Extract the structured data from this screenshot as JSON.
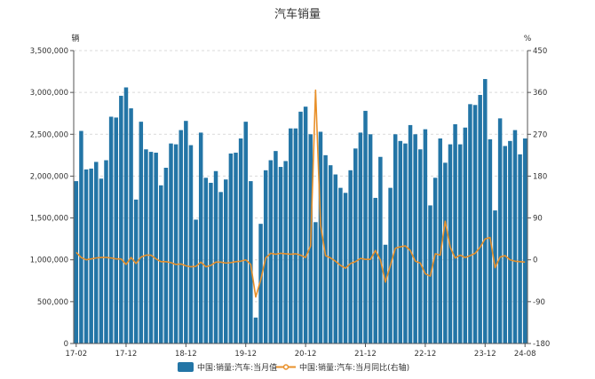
{
  "chart_data": {
    "type": "bar",
    "title": "汽车销量",
    "y_left_unit": "辆",
    "y_right_unit": "%",
    "x_tick_labels": [
      "17-02",
      "17-12",
      "18-12",
      "19-12",
      "20-12",
      "21-12",
      "22-12",
      "23-12",
      "24-08"
    ],
    "y_left_ticks": [
      "0",
      "500,000",
      "1,000,000",
      "1,500,000",
      "2,000,000",
      "2,500,000",
      "3,000,000",
      "3,500,000"
    ],
    "y_right_ticks": [
      "-180",
      "-90",
      "0",
      "90",
      "180",
      "270",
      "360",
      "450"
    ],
    "ylim_left": [
      0,
      3500000
    ],
    "ylim_right": [
      -180,
      450
    ],
    "grid": true,
    "legend_position": "bottom",
    "categories": [
      "17-02",
      "17-03",
      "17-04",
      "17-05",
      "17-06",
      "17-07",
      "17-08",
      "17-09",
      "17-10",
      "17-11",
      "17-12",
      "18-01",
      "18-02",
      "18-03",
      "18-04",
      "18-05",
      "18-06",
      "18-07",
      "18-08",
      "18-09",
      "18-10",
      "18-11",
      "18-12",
      "19-01",
      "19-02",
      "19-03",
      "19-04",
      "19-05",
      "19-06",
      "19-07",
      "19-08",
      "19-09",
      "19-10",
      "19-11",
      "19-12",
      "20-01",
      "20-02",
      "20-03",
      "20-04",
      "20-05",
      "20-06",
      "20-07",
      "20-08",
      "20-09",
      "20-10",
      "20-11",
      "20-12",
      "21-01",
      "21-02",
      "21-03",
      "21-04",
      "21-05",
      "21-06",
      "21-07",
      "21-08",
      "21-09",
      "21-10",
      "21-11",
      "21-12",
      "22-01",
      "22-02",
      "22-03",
      "22-04",
      "22-05",
      "22-06",
      "22-07",
      "22-08",
      "22-09",
      "22-10",
      "22-11",
      "22-12",
      "23-01",
      "23-02",
      "23-03",
      "23-04",
      "23-05",
      "23-06",
      "23-07",
      "23-08",
      "23-09",
      "23-10",
      "23-11",
      "23-12",
      "24-01",
      "24-02",
      "24-03",
      "24-04",
      "24-05",
      "24-06",
      "24-07",
      "24-08"
    ],
    "series": [
      {
        "name": "中国:销量:汽车:当月值",
        "axis": "left",
        "color": "#2375a6",
        "values": [
          1940000,
          2540000,
          2080000,
          2090000,
          2170000,
          1970000,
          2190000,
          2710000,
          2700000,
          2960000,
          3060000,
          2810000,
          1720000,
          2650000,
          2320000,
          2290000,
          2280000,
          1890000,
          2100000,
          2390000,
          2380000,
          2550000,
          2660000,
          2370000,
          1480000,
          2520000,
          1980000,
          1920000,
          2060000,
          1810000,
          1960000,
          2270000,
          2280000,
          2450000,
          2650000,
          1940000,
          310000,
          1430000,
          2070000,
          2190000,
          2300000,
          2110000,
          2180000,
          2570000,
          2570000,
          2770000,
          2830000,
          2500000,
          1450000,
          2530000,
          2250000,
          2130000,
          2020000,
          1860000,
          1800000,
          2070000,
          2330000,
          2520000,
          2780000,
          2500000,
          1740000,
          2230000,
          1180000,
          1860000,
          2500000,
          2420000,
          2390000,
          2610000,
          2500000,
          2320000,
          2560000,
          1650000,
          1980000,
          2450000,
          2160000,
          2380000,
          2620000,
          2380000,
          2580000,
          2860000,
          2850000,
          2970000,
          3160000,
          2440000,
          1590000,
          2690000,
          2360000,
          2420000,
          2550000,
          2260000,
          2450000
        ]
      },
      {
        "name": "中国:销量:汽车:当月同比(右轴)",
        "axis": "right",
        "color": "#e8902a",
        "values": [
          16,
          5,
          0,
          2,
          4,
          5,
          5,
          4,
          2,
          2,
          -10,
          5,
          -8,
          6,
          10,
          10,
          2,
          -4,
          -4,
          -6,
          -10,
          -9,
          -13,
          -15,
          -14,
          -5,
          -15,
          -12,
          -5,
          -5,
          -7,
          -6,
          -4,
          -3,
          0,
          -10,
          -80,
          -43,
          4,
          14,
          12,
          14,
          13,
          12,
          13,
          10,
          5,
          30,
          365,
          75,
          9,
          4,
          -3,
          -12,
          -18,
          -8,
          -4,
          3,
          1,
          1,
          20,
          0,
          -48,
          -12,
          25,
          28,
          30,
          20,
          -3,
          -7,
          -30,
          -35,
          13,
          10,
          83,
          27,
          4,
          10,
          5,
          9,
          14,
          27,
          45,
          48,
          -17,
          6,
          9,
          0,
          -3,
          -4,
          -5
        ]
      }
    ]
  }
}
